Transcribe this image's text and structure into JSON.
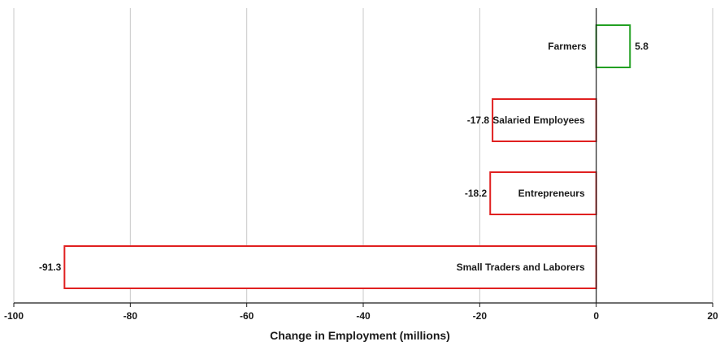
{
  "chart_data": {
    "type": "bar",
    "orientation": "horizontal",
    "title": "",
    "xlabel": "Change in Employment (millions)",
    "ylabel": "",
    "xlim": [
      -100,
      20
    ],
    "xticks": [
      -100,
      -80,
      -60,
      -40,
      -20,
      0,
      20
    ],
    "grid": "vertical",
    "legend": "none",
    "categories": [
      "Farmers",
      "Salaried Employees",
      "Entrepreneurs",
      "Small Traders and Laborers"
    ],
    "values": [
      5.8,
      -17.8,
      -18.2,
      -91.3
    ],
    "value_labels": [
      "5.8",
      "-17.8",
      "-18.2",
      "-91.3"
    ],
    "colors": {
      "positive": "#22a022",
      "negative": "#e02020",
      "fill": "#ffffff"
    }
  }
}
